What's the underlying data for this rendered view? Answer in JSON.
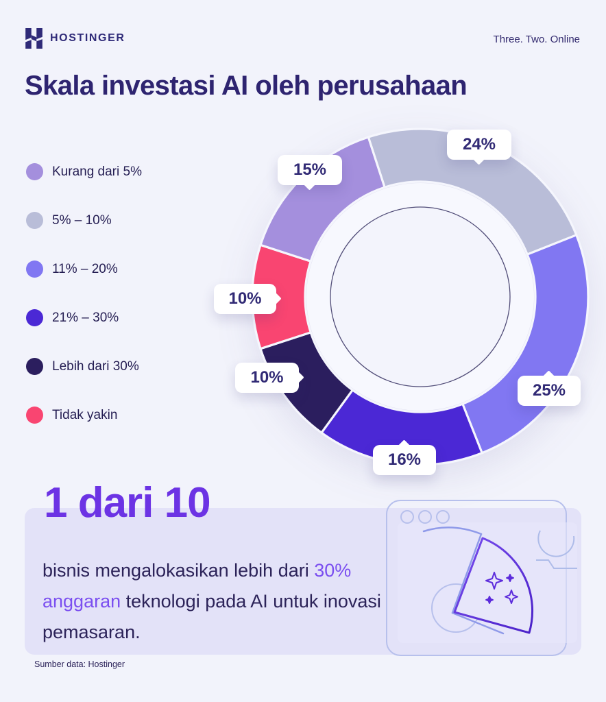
{
  "header": {
    "brand": "HOSTINGER",
    "tagline": "Three. Two. Online"
  },
  "title": "Skala investasi AI oleh perusahaan",
  "legend": {
    "items": [
      {
        "label": "Kurang dari 5%",
        "color": "#a48fdd"
      },
      {
        "label": "5% – 10%",
        "color": "#b9bdd8"
      },
      {
        "label": "11% – 20%",
        "color": "#8177f2"
      },
      {
        "label": "21% – 30%",
        "color": "#4b28d5"
      },
      {
        "label": "Lebih dari 30%",
        "color": "#2b1e5e"
      },
      {
        "label": "Tidak yakin",
        "color": "#f94571"
      }
    ]
  },
  "chart_data": {
    "type": "pie",
    "variant": "donut",
    "title": "Skala investasi AI oleh perusahaan",
    "units": "percent",
    "start_angle_deg": -18,
    "direction": "clockwise",
    "slices": [
      {
        "category": "5% – 10%",
        "value": 24,
        "label": "24%",
        "color": "#b9bdd8"
      },
      {
        "category": "11% – 20%",
        "value": 25,
        "label": "25%",
        "color": "#8177f2"
      },
      {
        "category": "21% – 30%",
        "value": 16,
        "label": "16%",
        "color": "#4b28d5"
      },
      {
        "category": "Lebih dari 30%",
        "value": 10,
        "label": "10%",
        "color": "#2b1e5e"
      },
      {
        "category": "Tidak yakin",
        "value": 10,
        "label": "10%",
        "color": "#f94571"
      },
      {
        "category": "Kurang dari 5%",
        "value": 15,
        "label": "15%",
        "color": "#a48fdd"
      }
    ],
    "legend_position": "left",
    "hole_outline_color": "#514d78"
  },
  "highlight": {
    "heading": "1 dari 10",
    "body_pre": "bisnis mengalokasikan lebih dari ",
    "body_highlight": "30% anggaran",
    "body_post": " teknologi pada AI untuk inovasi pemasaran."
  },
  "footer": {
    "source": "Sumber data: Hostinger"
  },
  "colors": {
    "background": "#f2f3fb",
    "panel": "#e3e2f8",
    "title_text": "#2e2470",
    "heading_accent": "#6c33e4",
    "body_accent": "#7b4ff0",
    "callout_text": "#312a75",
    "slice_gap": "#f5f6fd"
  }
}
